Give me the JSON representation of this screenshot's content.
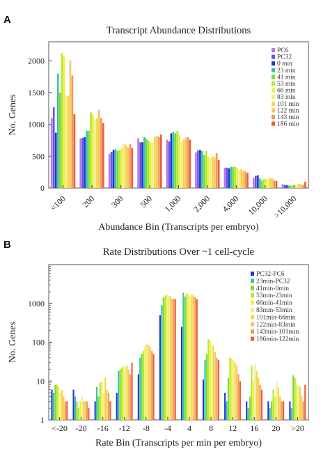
{
  "panels": {
    "a": "A",
    "b": "B"
  },
  "chart_data": [
    {
      "type": "bar",
      "title": "Transcript Abundance Distributions",
      "xlabel": "Abundance Bin (Transcripts per embryo)",
      "ylabel": "No. Genes",
      "ylim": [
        0,
        2300
      ],
      "yticks": [
        0,
        500,
        1000,
        1500,
        2000
      ],
      "legend": "top-right",
      "categories": [
        "<100",
        "200",
        "300",
        "500",
        "1,000",
        "2,000",
        "4,000",
        "10,000",
        ">10,000"
      ],
      "colors": [
        "#b57be6",
        "#6a54e0",
        "#2233dd",
        "#33c7a4",
        "#7fd63a",
        "#b3ea2a",
        "#eef03a",
        "#f0ec96",
        "#f4d838",
        "#f6c46a",
        "#f39a4e",
        "#ee5c3a"
      ],
      "series": [
        {
          "name": "PC6",
          "values": [
            1100,
            780,
            540,
            780,
            760,
            560,
            320,
            160,
            60
          ]
        },
        {
          "name": "PC32",
          "values": [
            1270,
            790,
            570,
            720,
            730,
            590,
            320,
            190,
            50
          ]
        },
        {
          "name": "0 min",
          "values": [
            870,
            800,
            600,
            720,
            860,
            600,
            310,
            200,
            45
          ]
        },
        {
          "name": "23 min",
          "values": [
            1800,
            900,
            610,
            800,
            880,
            580,
            330,
            150,
            40
          ]
        },
        {
          "name": "41 min",
          "values": [
            1500,
            900,
            580,
            770,
            860,
            520,
            330,
            120,
            35
          ]
        },
        {
          "name": "53 min",
          "values": [
            2120,
            1190,
            600,
            740,
            900,
            580,
            340,
            140,
            40
          ]
        },
        {
          "name": "66 min",
          "values": [
            2070,
            1160,
            640,
            720,
            840,
            490,
            320,
            150,
            50
          ]
        },
        {
          "name": "83 min",
          "values": [
            1460,
            1060,
            700,
            720,
            720,
            470,
            280,
            140,
            60
          ]
        },
        {
          "name": "101 min",
          "values": [
            1450,
            1100,
            680,
            800,
            760,
            500,
            300,
            160,
            70
          ]
        },
        {
          "name": "122 min",
          "values": [
            2010,
            1230,
            640,
            820,
            790,
            480,
            270,
            150,
            60
          ]
        },
        {
          "name": "143 min",
          "values": [
            1770,
            1100,
            690,
            800,
            800,
            550,
            260,
            120,
            50
          ]
        },
        {
          "name": "186 min",
          "values": [
            1160,
            1020,
            630,
            840,
            760,
            440,
            240,
            110,
            100
          ]
        }
      ]
    },
    {
      "type": "bar",
      "title": "Rate Distributions Over ~1 cell-cycle",
      "xlabel": "Rate Bin (Transcripts per min per embryo)",
      "ylabel": "No. Genes",
      "yscale": "log",
      "ylim": [
        1,
        10000
      ],
      "yticks": [
        1,
        10,
        100,
        1000
      ],
      "legend": "top-right",
      "categories": [
        "<-20",
        "-20",
        "-16",
        "-12",
        "-8",
        "-4",
        "4",
        "8",
        "12",
        "16",
        "20",
        ">20"
      ],
      "colors": [
        "#2233dd",
        "#33c7a4",
        "#7fd63a",
        "#b3ea2a",
        "#eef03a",
        "#f0ec96",
        "#f4d838",
        "#f6c46a",
        "#f39a4e",
        "#ee5c3a"
      ],
      "series": [
        {
          "name": "PC32-PC6",
          "values": [
            6,
            6,
            3,
            5,
            15,
            500,
            250,
            11,
            5,
            3,
            3,
            3
          ]
        },
        {
          "name": "23min-PC32",
          "values": [
            5,
            4,
            7,
            18,
            40,
            900,
            1900,
            35,
            3,
            2,
            2,
            2
          ]
        },
        {
          "name": "41min-0min",
          "values": [
            8,
            3,
            4,
            20,
            50,
            1400,
            1500,
            50,
            12,
            4,
            3,
            14
          ]
        },
        {
          "name": "53min-23min",
          "values": [
            8,
            2,
            9,
            22,
            60,
            1600,
            1800,
            120,
            40,
            25,
            6,
            12
          ]
        },
        {
          "name": "66min-41min",
          "values": [
            7,
            3,
            10,
            25,
            80,
            1700,
            1700,
            110,
            38,
            10,
            4,
            8
          ]
        },
        {
          "name": "83min-53min",
          "values": [
            5,
            4,
            5,
            22,
            90,
            1500,
            1500,
            85,
            35,
            27,
            10,
            8
          ]
        },
        {
          "name": "101min-66min",
          "values": [
            6,
            3,
            12,
            25,
            85,
            1550,
            1700,
            80,
            30,
            18,
            7,
            7
          ]
        },
        {
          "name": "122min-83min",
          "values": [
            4,
            3,
            6,
            20,
            75,
            1350,
            1600,
            55,
            25,
            12,
            4,
            4
          ]
        },
        {
          "name": "143min-101min",
          "values": [
            3,
            3,
            5,
            15,
            60,
            1300,
            1450,
            40,
            15,
            8,
            3,
            3
          ]
        },
        {
          "name": "186min-122min",
          "values": [
            3,
            2,
            3,
            30,
            50,
            1300,
            1300,
            35,
            10,
            6,
            3,
            8
          ]
        }
      ]
    }
  ]
}
